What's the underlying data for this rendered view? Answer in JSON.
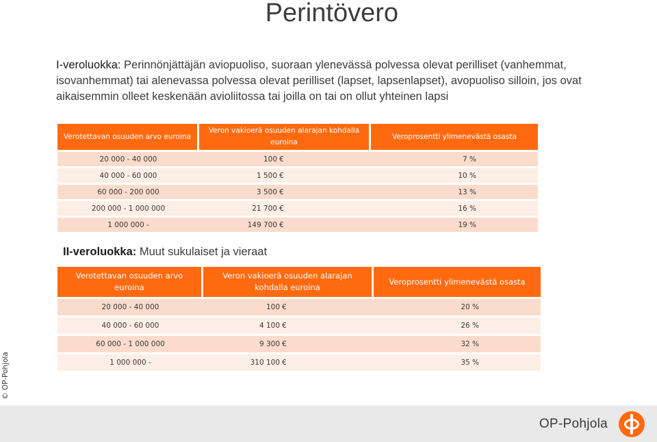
{
  "title": "Perintövero",
  "intro": {
    "lead": "I-veroluokka:",
    "text": " Perinnönjättäjän aviopuoliso, suoraan ylenevässä polvessa olevat perilliset (vanhemmat, isovanhemmat) tai alenevassa polvessa olevat perilliset (lapset, lapsenlapset), avopuoliso silloin, jos ovat aikaisemmin olleet keskenään avioliitossa tai joilla on tai on ollut yhteinen lapsi"
  },
  "table1": {
    "headers": [
      "Verotettavan osuuden arvo euroina",
      "Veron vakioerä osuuden alarajan kohdalla euroina",
      "Veroprosentti ylimenevästä osasta"
    ],
    "rows": [
      {
        "range": "20 000 -    40 000",
        "base": "100",
        "rate": "7 %"
      },
      {
        "range": "40 000 -    60 000",
        "base": "1 500",
        "rate": "10 %"
      },
      {
        "range": "60 000 -   200 000",
        "base": "3 500",
        "rate": "13 %"
      },
      {
        "range": "200 000 - 1 000 000",
        "base": "21 700",
        "rate": "16 %"
      },
      {
        "range": "1 000 000 -",
        "base": "149 700",
        "rate": "19 %"
      }
    ]
  },
  "class2": {
    "lead": "II-veroluokka:",
    "text": " Muut sukulaiset ja vieraat"
  },
  "table2": {
    "headers": [
      "Verotettavan osuuden arvo euroina",
      "Veron vakioerä osuuden alarajan kohdalla euroina",
      "Veroprosentti ylimenevästä osasta"
    ],
    "rows": [
      {
        "range": "20 000 -    40 000",
        "base": "100",
        "rate": "20 %"
      },
      {
        "range": "40 000 -    60 000",
        "base": "4 100",
        "rate": "26 %"
      },
      {
        "range": "60 000 - 1 000 000",
        "base": "9 300",
        "rate": "32 %"
      },
      {
        "range": "1 000 000 -",
        "base": "310 100",
        "rate": "35 %"
      }
    ]
  },
  "currency_symbol": "€",
  "copyright": "© OP-Pohjola",
  "brand": "OP-Pohjola",
  "colors": {
    "accent": "#ff6a10",
    "row_dark": "#fbdccc",
    "row_light": "#fdeee6"
  }
}
